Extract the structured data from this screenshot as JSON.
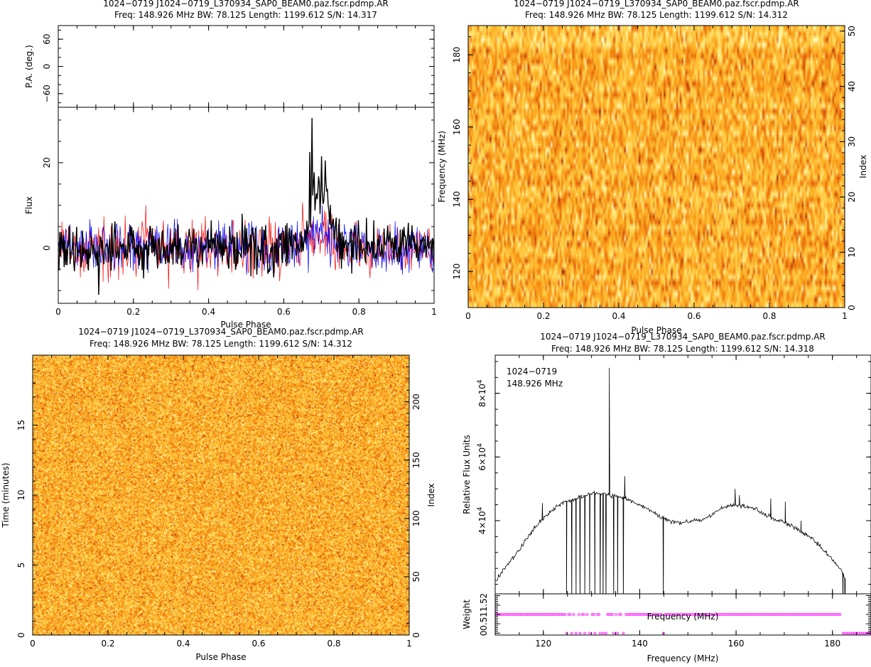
{
  "panels": {
    "p1": {
      "title": "1024−0719 J1024−0719_L370934_SAP0_BEAM0.paz.fscr.pdmp.AR",
      "subtitle": "Freq: 148.926 MHz BW: 78.125 Length: 1199.612 S/N: 14.317"
    },
    "p2": {
      "title": "1024−0719 J1024−0719_L370934_SAP0_BEAM0.paz.fscr.pdmp.AR",
      "subtitle": "Freq: 148.926 MHz BW: 78.125 Length: 1199.612 S/N: 14.312"
    },
    "p3": {
      "title": "1024−0719 J1024−0719_L370934_SAP0_BEAM0.paz.fscr.pdmp.AR",
      "subtitle": "Freq: 148.926 MHz BW: 78.125 Length: 1199.612 S/N: 14.312"
    },
    "p4": {
      "title": "1024−0719 J1024−0719_L370934_SAP0_BEAM0.paz.fscr.pdmp.AR",
      "subtitle": "Freq: 148.926 MHz BW: 78.125 Length: 1199.612 S/N: 14.318",
      "annotation_name": "1024−0719",
      "annotation_freq": "148.926 MHz"
    }
  },
  "chart_data": [
    {
      "id": "pa",
      "type": "scatter",
      "xlabel": "",
      "ylabel": "P.A. (deg.)",
      "xlim": [
        0,
        1
      ],
      "ylim": [
        -90,
        90
      ],
      "yticks": [
        {
          "v": 60,
          "label": "60"
        },
        {
          "v": 0,
          "label": "0"
        },
        {
          "v": -60,
          "label": "−60"
        }
      ],
      "series": []
    },
    {
      "id": "profile",
      "type": "line",
      "xlabel": "Pulse Phase",
      "ylabel": "Flux",
      "xlim": [
        0,
        1
      ],
      "ylim": [
        -13,
        33
      ],
      "xticks": [
        {
          "v": 0,
          "label": "0"
        },
        {
          "v": 0.2,
          "label": "0.2"
        },
        {
          "v": 0.4,
          "label": "0.4"
        },
        {
          "v": 0.6,
          "label": "0.6"
        },
        {
          "v": 0.8,
          "label": "0.8"
        },
        {
          "v": 1,
          "label": "1"
        }
      ],
      "yticks": [
        {
          "v": 20,
          "label": "20"
        },
        {
          "v": 0,
          "label": "0"
        }
      ],
      "series": [
        {
          "color": "#ff0000",
          "amp": 5,
          "width": 0.7,
          "peak": {
            "center": 0.69,
            "height": 3,
            "w": 0.04
          }
        },
        {
          "color": "#0000ff",
          "amp": 4.5,
          "width": 0.7,
          "peak": {
            "center": 0.7,
            "height": 5,
            "w": 0.04
          }
        },
        {
          "color": "#000000",
          "amp": 4.5,
          "width": 1.4,
          "peak": {
            "center": 0.7,
            "height": 14,
            "w": 0.035
          },
          "spikes": [
            {
              "x": 0.676,
              "y": 30.5
            },
            {
              "x": 0.67,
              "y": 22.5
            },
            {
              "x": 0.7,
              "y": 21.5
            },
            {
              "x": 0.71,
              "y": 20.5
            },
            {
              "x": 0.108,
              "y": -11
            }
          ]
        }
      ]
    },
    {
      "id": "freq-phase",
      "type": "heatmap",
      "xlabel": "Pulse Phase",
      "ylabel": "Frequency (MHz)",
      "y2label": "Index",
      "xlim": [
        0,
        1
      ],
      "ylim": [
        110,
        188.1
      ],
      "y2lim": [
        0,
        51
      ],
      "rows": 51,
      "cols": 210,
      "xticks": [
        {
          "v": 0,
          "label": "0"
        },
        {
          "v": 0.2,
          "label": "0.2"
        },
        {
          "v": 0.4,
          "label": "0.4"
        },
        {
          "v": 0.6,
          "label": "0.6"
        },
        {
          "v": 0.8,
          "label": "0.8"
        },
        {
          "v": 1,
          "label": "1"
        }
      ],
      "yticks": [
        {
          "v": 120,
          "label": "120"
        },
        {
          "v": 140,
          "label": "140"
        },
        {
          "v": 160,
          "label": "160"
        },
        {
          "v": 180,
          "label": "180"
        }
      ],
      "y2ticks": [
        {
          "v": 0,
          "label": "0"
        },
        {
          "v": 10,
          "label": "10"
        },
        {
          "v": 20,
          "label": "20"
        },
        {
          "v": 30,
          "label": "30"
        },
        {
          "v": 40,
          "label": "40"
        },
        {
          "v": 50,
          "label": "50"
        }
      ]
    },
    {
      "id": "time-phase",
      "type": "heatmap",
      "xlabel": "Pulse Phase",
      "ylabel": "Time (minutes)",
      "y2label": "Index",
      "xlim": [
        0,
        1
      ],
      "ylim": [
        0,
        20
      ],
      "y2lim": [
        0,
        240
      ],
      "rows": 240,
      "cols": 330,
      "xticks": [
        {
          "v": 0,
          "label": "0"
        },
        {
          "v": 0.2,
          "label": "0.2"
        },
        {
          "v": 0.4,
          "label": "0.4"
        },
        {
          "v": 0.6,
          "label": "0.6"
        },
        {
          "v": 0.8,
          "label": "0.8"
        },
        {
          "v": 1,
          "label": "1"
        }
      ],
      "yticks": [
        {
          "v": 0,
          "label": "0"
        },
        {
          "v": 5,
          "label": "5"
        },
        {
          "v": 10,
          "label": "10"
        },
        {
          "v": 15,
          "label": "15"
        }
      ],
      "y2ticks": [
        {
          "v": 0,
          "label": "0"
        },
        {
          "v": 50,
          "label": "50"
        },
        {
          "v": 100,
          "label": "100"
        },
        {
          "v": 150,
          "label": "150"
        },
        {
          "v": 200,
          "label": "200"
        }
      ]
    },
    {
      "id": "bandpass",
      "type": "line",
      "xlabel": "Frequency (MHz)",
      "ylabel": "Relative Flux Units",
      "xlim": [
        110,
        188
      ],
      "ylim": [
        17000,
        92000
      ],
      "xticks": [
        {
          "v": 120,
          "label": "120"
        },
        {
          "v": 140,
          "label": "140"
        },
        {
          "v": 160,
          "label": "160"
        },
        {
          "v": 180,
          "label": "180"
        }
      ],
      "yticks": [
        {
          "v": 40000,
          "mant": "4",
          "exp": "4"
        },
        {
          "v": 60000,
          "mant": "6",
          "exp": "4"
        },
        {
          "v": 80000,
          "mant": "8",
          "exp": "4"
        }
      ],
      "profile": [
        [
          110,
          21000
        ],
        [
          112,
          25000
        ],
        [
          115,
          31000
        ],
        [
          118,
          37500
        ],
        [
          120,
          40500
        ],
        [
          122,
          43500
        ],
        [
          124,
          45500
        ],
        [
          126,
          46500
        ],
        [
          128,
          47500
        ],
        [
          130,
          48500
        ],
        [
          132,
          48500
        ],
        [
          134,
          48000
        ],
        [
          136,
          47500
        ],
        [
          138,
          46500
        ],
        [
          140,
          45000
        ],
        [
          142,
          43500
        ],
        [
          144,
          41500
        ],
        [
          146,
          40000
        ],
        [
          148,
          39500
        ],
        [
          150,
          39500
        ],
        [
          152,
          40000
        ],
        [
          154,
          41000
        ],
        [
          156,
          43000
        ],
        [
          158,
          44500
        ],
        [
          160,
          45000
        ],
        [
          162,
          44500
        ],
        [
          164,
          43500
        ],
        [
          166,
          42000
        ],
        [
          168,
          40500
        ],
        [
          170,
          39500
        ],
        [
          172,
          38000
        ],
        [
          174,
          36000
        ],
        [
          176,
          34000
        ],
        [
          178,
          31000
        ],
        [
          180,
          28000
        ],
        [
          182,
          24000
        ],
        [
          182.5,
          22000
        ]
      ],
      "spikes": [
        [
          119.8,
          45500
        ],
        [
          133.7,
          88000
        ],
        [
          136.9,
          54000
        ],
        [
          159.8,
          50000
        ],
        [
          160.7,
          48000
        ],
        [
          167.2,
          47000
        ],
        [
          170.2,
          46000
        ],
        [
          173.5,
          40000
        ]
      ],
      "dropouts": [
        124.8,
        125.9,
        126.8,
        127.6,
        128.6,
        129.6,
        130.7,
        131.8,
        132.4,
        133.0,
        134.6,
        135.4,
        136.6,
        144.9,
        182.2,
        182.6
      ]
    },
    {
      "id": "weights",
      "type": "scatter",
      "xlabel": "Frequency (MHz)",
      "ylabel": "Weight",
      "xlim": [
        110,
        188
      ],
      "ylim": [
        -0.1,
        2.1
      ],
      "xticks": [
        {
          "v": 120,
          "label": "120"
        },
        {
          "v": 140,
          "label": "140"
        },
        {
          "v": 160,
          "label": "160"
        },
        {
          "v": 180,
          "label": "180"
        }
      ],
      "yticks": [
        {
          "v": 0,
          "label": "0"
        },
        {
          "v": 0.5,
          "label": "0.5"
        },
        {
          "v": 1,
          "label": "1"
        },
        {
          "v": 1.5,
          "label": "1.5"
        },
        {
          "v": 2,
          "label": "2"
        }
      ],
      "marker_color": "#ff00ff",
      "zero_weight_mhz": [
        124.8,
        125.9,
        126.8,
        127.6,
        128.6,
        129.6,
        130.7,
        131.8,
        132.4,
        133.0,
        134.6,
        135.4,
        136.6,
        144.9,
        182.2,
        182.6,
        183.0,
        183.4,
        183.8,
        184.2,
        184.6,
        185.0,
        185.4,
        185.8,
        186.2,
        186.6,
        187.0,
        187.4,
        187.8
      ],
      "weight_one_range": [
        110.2,
        181.8
      ]
    }
  ]
}
